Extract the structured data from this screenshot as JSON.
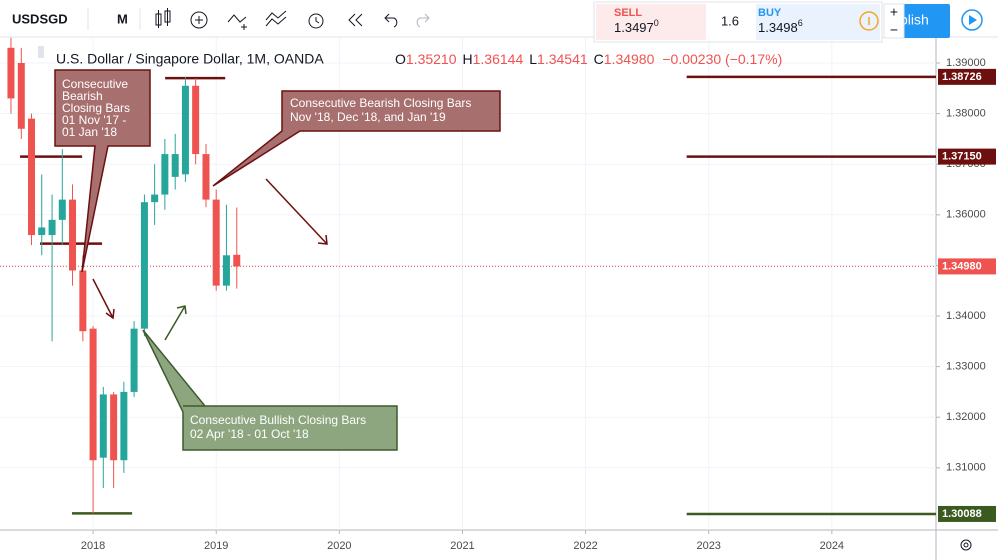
{
  "toolbar": {
    "symbol": "USDSGD",
    "interval": "M",
    "sell_label": "SELL",
    "sell_price": "1.3497",
    "sell_pip": "0",
    "spread": "1.6",
    "buy_label": "BUY",
    "buy_price": "1.3498",
    "buy_pip": "6",
    "publish": "blish"
  },
  "legend": {
    "name": "U.S. Dollar / Singapore Dollar, 1M, OANDA",
    "o_label": "O",
    "o": "1.35210",
    "h_label": "H",
    "h": "1.36144",
    "l_label": "L",
    "l": "1.34541",
    "c_label": "C",
    "c": "1.34980",
    "change": "−0.00230 (−0.17%)"
  },
  "callouts": [
    {
      "lines": [
        "Consecutive",
        "Bearish",
        "Closing Bars",
        "01 Nov '17 -",
        "01 Jan '18"
      ]
    },
    {
      "lines": [
        "Consecutive Bearish Closing Bars",
        "Nov '18, Dec '18, and Jan '19"
      ]
    },
    {
      "lines": [
        "Consecutive Bullish Closing Bars",
        "02 Apr '18 - 01 Oct '18"
      ]
    }
  ],
  "chart_data": {
    "type": "candlestick",
    "up_color": "#26a69a",
    "down_color": "#ef5350",
    "grid": true,
    "x": [
      2017.333,
      2017.417,
      2017.5,
      2017.583,
      2017.667,
      2017.75,
      2017.833,
      2017.917,
      2018,
      2018.083,
      2018.167,
      2018.25,
      2018.333,
      2018.417,
      2018.5,
      2018.583,
      2018.667,
      2018.75,
      2018.833,
      2018.917,
      2019,
      2019.083,
      2019.167
    ],
    "open": [
      1.393,
      1.39,
      1.379,
      1.356,
      1.356,
      1.359,
      1.363,
      1.349,
      1.3375,
      1.312,
      1.3245,
      1.3115,
      1.325,
      1.3375,
      1.3625,
      1.364,
      1.3675,
      1.368,
      1.3855,
      1.372,
      1.363,
      1.346,
      1.3521
    ],
    "high": [
      1.395,
      1.393,
      1.38,
      1.368,
      1.364,
      1.373,
      1.366,
      1.352,
      1.338,
      1.326,
      1.325,
      1.327,
      1.339,
      1.364,
      1.37,
      1.375,
      1.376,
      1.3872,
      1.387,
      1.374,
      1.365,
      1.362,
      1.36144
    ],
    "low": [
      1.38,
      1.375,
      1.354,
      1.352,
      1.335,
      1.354,
      1.346,
      1.335,
      1.301,
      1.306,
      1.306,
      1.309,
      1.324,
      1.336,
      1.358,
      1.361,
      1.365,
      1.3665,
      1.37,
      1.3615,
      1.345,
      1.345,
      1.34541
    ],
    "close": [
      1.383,
      1.377,
      1.356,
      1.3575,
      1.359,
      1.363,
      1.349,
      1.337,
      1.3115,
      1.3245,
      1.3115,
      1.325,
      1.3375,
      1.3625,
      1.364,
      1.372,
      1.372,
      1.3855,
      1.372,
      1.363,
      1.346,
      1.352,
      1.3498
    ],
    "xlim": [
      2017.244,
      2024.846
    ],
    "ylim": [
      1.29771,
      1.39494
    ],
    "xticks": [
      2018,
      2019,
      2020,
      2021,
      2022,
      2023,
      2024
    ],
    "yticks": [
      {
        "value": 1.31,
        "label": "1.31000"
      },
      {
        "value": 1.32,
        "label": "1.32000"
      },
      {
        "value": 1.33,
        "label": "1.33000"
      },
      {
        "value": 1.34,
        "label": "1.34000"
      },
      {
        "value": 1.35,
        "label": "1.35000"
      },
      {
        "value": 1.36,
        "label": "1.36000"
      },
      {
        "value": 1.37,
        "label": "1.37000"
      },
      {
        "value": 1.38,
        "label": "1.38000"
      },
      {
        "value": 1.39,
        "label": "1.39000"
      }
    ],
    "levels": [
      {
        "value": 1.38726,
        "label": "1.38726",
        "color": "#6d0f0f",
        "from": 2022.821
      },
      {
        "value": 1.3715,
        "label": "1.37150",
        "color": "#6d0f0f",
        "from": 2022.821
      },
      {
        "value": 1.3498,
        "label": "1.34980",
        "color": "#ef5350",
        "from": 2017.244,
        "style": "dotted"
      },
      {
        "value": 1.30088,
        "label": "1.30088",
        "color": "#3a5a1f",
        "from": 2022.821
      }
    ],
    "segments": [
      {
        "value": 1.387,
        "from": 2018.585,
        "to": 2019.073,
        "color": "#6d0f0f"
      },
      {
        "value": 1.3715,
        "from": 2017.407,
        "to": 2017.911,
        "color": "#6d0f0f"
      },
      {
        "value": 1.3543,
        "from": 2017.569,
        "to": 2018.073,
        "color": "#6d0f0f"
      },
      {
        "value": 1.301,
        "from": 2017.829,
        "to": 2018.317,
        "color": "#3a5a1f"
      }
    ]
  }
}
